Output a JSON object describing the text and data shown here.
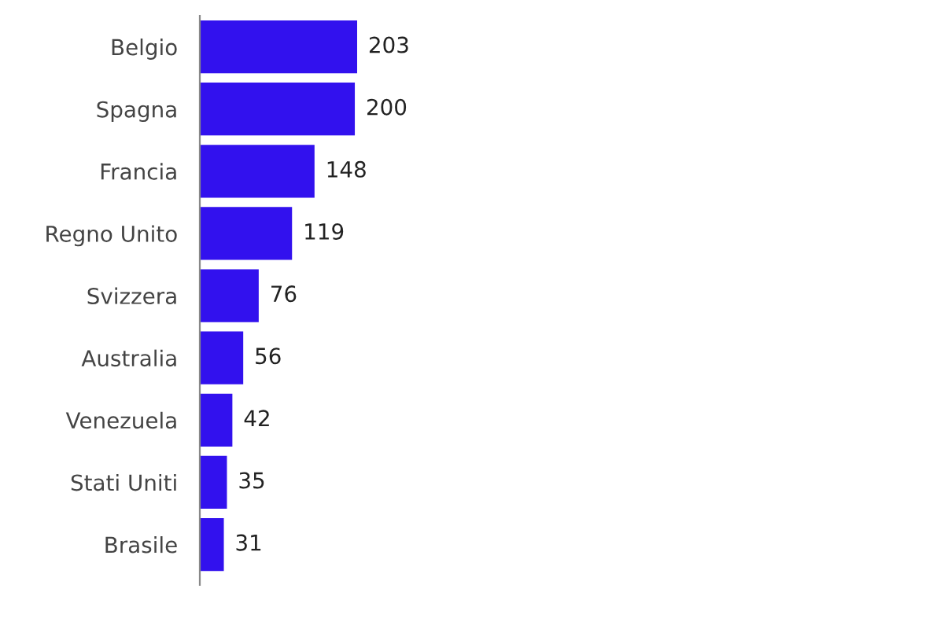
{
  "chart_data": {
    "type": "bar",
    "orientation": "horizontal",
    "categories": [
      "Belgio",
      "Spagna",
      "Francia",
      "Regno Unito",
      "Svizzera",
      "Australia",
      "Venezuela",
      "Stati Uniti",
      "Brasile"
    ],
    "values": [
      203,
      200,
      148,
      119,
      76,
      56,
      42,
      35,
      31
    ],
    "color": "#3211ee",
    "data_labels": true,
    "grid": false,
    "legend": false
  }
}
